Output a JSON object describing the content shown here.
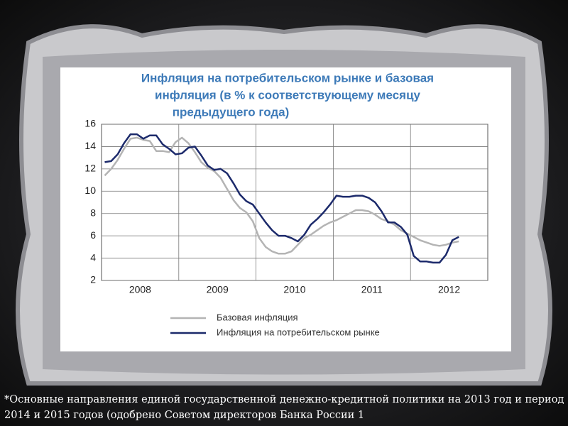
{
  "chart_data": {
    "type": "line",
    "title": [
      "Инфляция на потребительском рынке и базовая",
      "инфляция (в % к соответствующему месяцу",
      "предыдущего года)"
    ],
    "categories": [
      "2008",
      "2009",
      "2010",
      "2011",
      "2012"
    ],
    "ylim": [
      2,
      16
    ],
    "yticks": [
      2,
      4,
      6,
      8,
      10,
      12,
      14,
      16
    ],
    "grid": true,
    "series": [
      {
        "name": "Базовая инфляция",
        "color": "#b4b4b4",
        "values": [
          [
            11.4,
            12.0,
            12.8,
            13.8,
            14.7,
            14.8,
            14.6,
            14.5,
            13.6,
            13.6,
            13.5,
            14.4
          ],
          [
            14.8,
            14.3,
            13.5,
            12.6,
            12.1,
            11.8,
            11.2,
            10.2,
            9.2,
            8.5,
            8.1,
            7.3
          ],
          [
            5.8,
            5.0,
            4.6,
            4.4,
            4.4,
            4.6,
            5.2,
            5.8,
            6.1,
            6.5,
            6.9,
            7.2
          ],
          [
            7.4,
            7.7,
            8.0,
            8.3,
            8.3,
            8.2,
            7.9,
            7.5,
            7.3,
            7.0,
            6.5,
            6.2
          ],
          [
            5.9,
            5.6,
            5.4,
            5.2,
            5.1,
            5.2,
            5.4,
            5.5,
            null,
            null,
            null,
            null
          ]
        ]
      },
      {
        "name": "Инфляция на потребительском рынке",
        "color": "#1c2a6b",
        "values": [
          [
            12.6,
            12.7,
            13.3,
            14.3,
            15.1,
            15.1,
            14.7,
            15.0,
            15.0,
            14.2,
            13.8,
            13.3
          ],
          [
            13.4,
            13.9,
            14.0,
            13.2,
            12.3,
            11.9,
            12.0,
            11.6,
            10.7,
            9.7,
            9.1,
            8.8
          ],
          [
            8.0,
            7.2,
            6.5,
            6.0,
            6.0,
            5.8,
            5.5,
            6.1,
            7.0,
            7.5,
            8.1,
            8.8
          ],
          [
            9.6,
            9.5,
            9.5,
            9.6,
            9.6,
            9.4,
            9.0,
            8.2,
            7.2,
            7.2,
            6.8,
            6.1
          ],
          [
            4.2,
            3.7,
            3.7,
            3.6,
            3.6,
            4.3,
            5.6,
            5.9,
            null,
            null,
            null,
            null
          ]
        ]
      }
    ]
  },
  "footnote": "*Основные направления единой государственной денежно-кредитной политики на 2013 год и период 2014 и 2015 годов (одобрено Советом директоров Банка России 1"
}
